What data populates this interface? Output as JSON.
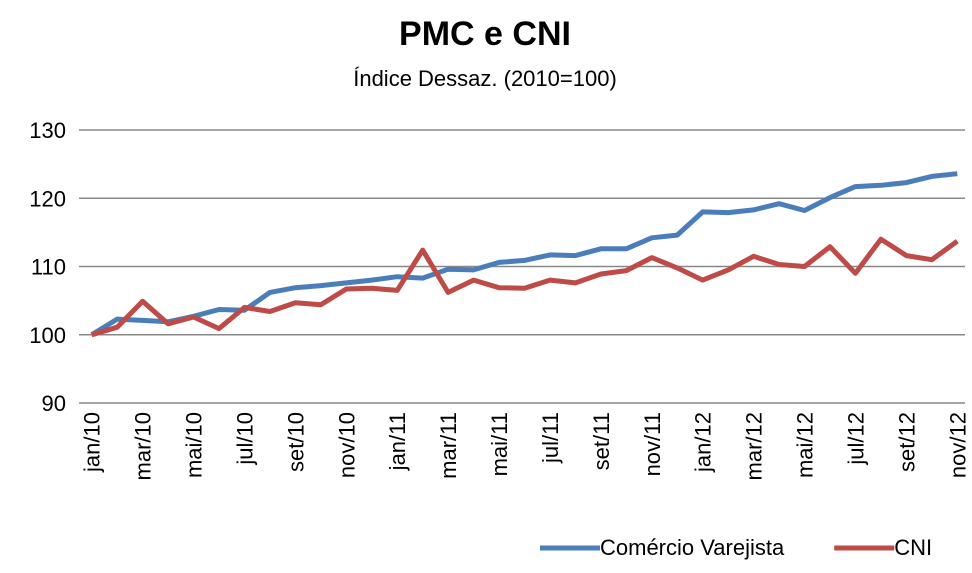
{
  "chart_data": {
    "type": "line",
    "title": "PMC e CNI",
    "subtitle": "Índice Dessaz. (2010=100)",
    "categories": [
      "jan/10",
      null,
      "mar/10",
      null,
      "mai/10",
      null,
      "jul/10",
      null,
      "set/10",
      null,
      "nov/10",
      null,
      "jan/11",
      null,
      "mar/11",
      null,
      "mai/11",
      null,
      "jul/11",
      null,
      "set/11",
      null,
      "nov/11",
      null,
      "jan/12",
      null,
      "mar/12",
      null,
      "mai/12",
      null,
      "jul/12",
      null,
      "set/12",
      null,
      "nov/12"
    ],
    "series": [
      {
        "name": "Comércio Varejista",
        "color": "#4a7ebb",
        "values": [
          100,
          102.3,
          102.1,
          101.9,
          102.7,
          103.7,
          103.6,
          106.2,
          106.9,
          107.2,
          107.6,
          108,
          108.5,
          108.3,
          109.6,
          109.5,
          110.6,
          110.9,
          111.7,
          111.6,
          112.6,
          112.6,
          114.2,
          114.6,
          118,
          117.9,
          118.3,
          119.2,
          118.2,
          120.1,
          121.7,
          121.9,
          122.3,
          123.2,
          123.6
        ]
      },
      {
        "name": "CNI",
        "color": "#be4b48",
        "values": [
          100,
          101.1,
          104.9,
          101.6,
          102.6,
          100.9,
          104.0,
          103.4,
          104.7,
          104.4,
          106.7,
          106.8,
          106.5,
          112.4,
          106.2,
          108.0,
          106.9,
          106.8,
          108.0,
          107.6,
          108.9,
          109.4,
          111.3,
          109.8,
          108.0,
          109.5,
          111.5,
          110.3,
          110.0,
          112.9,
          109.0,
          114.0,
          111.6,
          111.0,
          113.7
        ]
      }
    ],
    "ylim": [
      90,
      130
    ],
    "yticks": [
      90,
      100,
      110,
      120,
      130
    ],
    "grid": true,
    "legend": "bottom-right"
  }
}
